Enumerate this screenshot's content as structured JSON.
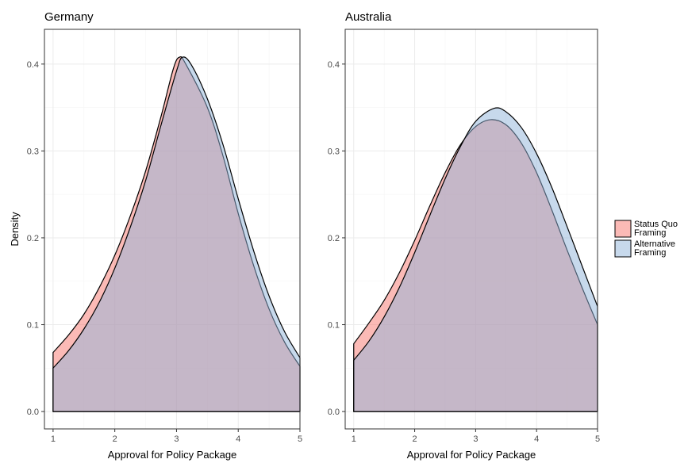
{
  "colors": {
    "status_quo_fill": "#f8766d",
    "alternative_fill": "#8fb3d9",
    "overlap_tint": "#c3c8d9",
    "panel_border": "#333333",
    "grid_major": "#ebebeb",
    "grid_minor": "#f5f5f5"
  },
  "chart_data": [
    {
      "type": "area",
      "title": "Germany",
      "xlabel": "Approval for Policy Package",
      "ylabel": "Density",
      "xlim": [
        0.86,
        5.0
      ],
      "ylim": [
        -0.02,
        0.44
      ],
      "x_ticks": [
        "1",
        "2",
        "3",
        "4",
        "5"
      ],
      "y_ticks": [
        "0.0",
        "0.1",
        "0.2",
        "0.3",
        "0.4"
      ],
      "series": [
        {
          "name": "Status Quo Framing",
          "points": [
            [
              1.0,
              0.068
            ],
            [
              1.25,
              0.088
            ],
            [
              1.5,
              0.112
            ],
            [
              1.75,
              0.143
            ],
            [
              2.0,
              0.18
            ],
            [
              2.25,
              0.225
            ],
            [
              2.5,
              0.277
            ],
            [
              2.75,
              0.34
            ],
            [
              2.95,
              0.395
            ],
            [
              3.05,
              0.408
            ],
            [
              3.15,
              0.4
            ],
            [
              3.5,
              0.35
            ],
            [
              3.75,
              0.295
            ],
            [
              4.0,
              0.228
            ],
            [
              4.25,
              0.168
            ],
            [
              4.5,
              0.118
            ],
            [
              4.75,
              0.08
            ],
            [
              5.0,
              0.052
            ]
          ]
        },
        {
          "name": "Alternative Framing",
          "points": [
            [
              1.0,
              0.05
            ],
            [
              1.25,
              0.07
            ],
            [
              1.5,
              0.095
            ],
            [
              1.75,
              0.126
            ],
            [
              2.0,
              0.165
            ],
            [
              2.25,
              0.212
            ],
            [
              2.5,
              0.266
            ],
            [
              2.75,
              0.33
            ],
            [
              3.0,
              0.392
            ],
            [
              3.1,
              0.408
            ],
            [
              3.25,
              0.398
            ],
            [
              3.5,
              0.36
            ],
            [
              3.75,
              0.308
            ],
            [
              4.0,
              0.245
            ],
            [
              4.25,
              0.185
            ],
            [
              4.5,
              0.133
            ],
            [
              4.75,
              0.092
            ],
            [
              5.0,
              0.062
            ]
          ]
        }
      ]
    },
    {
      "type": "area",
      "title": "Australia",
      "xlabel": "Approval for Policy Package",
      "ylabel": "",
      "xlim": [
        0.86,
        5.0
      ],
      "ylim": [
        -0.02,
        0.44
      ],
      "x_ticks": [
        "1",
        "2",
        "3",
        "4",
        "5"
      ],
      "y_ticks": [
        "0.0",
        "0.1",
        "0.2",
        "0.3",
        "0.4"
      ],
      "series": [
        {
          "name": "Status Quo Framing",
          "points": [
            [
              1.0,
              0.078
            ],
            [
              1.25,
              0.102
            ],
            [
              1.5,
              0.128
            ],
            [
              1.75,
              0.16
            ],
            [
              2.0,
              0.197
            ],
            [
              2.25,
              0.237
            ],
            [
              2.5,
              0.275
            ],
            [
              2.75,
              0.307
            ],
            [
              3.0,
              0.328
            ],
            [
              3.25,
              0.336
            ],
            [
              3.5,
              0.33
            ],
            [
              3.75,
              0.309
            ],
            [
              4.0,
              0.275
            ],
            [
              4.25,
              0.232
            ],
            [
              4.5,
              0.186
            ],
            [
              4.75,
              0.142
            ],
            [
              5.0,
              0.1
            ]
          ]
        },
        {
          "name": "Alternative Framing",
          "points": [
            [
              1.0,
              0.059
            ],
            [
              1.25,
              0.081
            ],
            [
              1.5,
              0.109
            ],
            [
              1.75,
              0.143
            ],
            [
              2.0,
              0.183
            ],
            [
              2.25,
              0.226
            ],
            [
              2.5,
              0.268
            ],
            [
              2.75,
              0.305
            ],
            [
              3.0,
              0.334
            ],
            [
              3.3,
              0.349
            ],
            [
              3.5,
              0.345
            ],
            [
              3.75,
              0.327
            ],
            [
              4.0,
              0.297
            ],
            [
              4.25,
              0.258
            ],
            [
              4.5,
              0.213
            ],
            [
              4.75,
              0.167
            ],
            [
              5.0,
              0.121
            ]
          ]
        }
      ]
    }
  ],
  "legend": {
    "placement": "right",
    "items": [
      {
        "line1": "Status Quo",
        "line2": "Framing",
        "color": "#f8766d"
      },
      {
        "line1": "Alternative",
        "line2": "Framing",
        "color": "#8fb3d9"
      }
    ]
  }
}
